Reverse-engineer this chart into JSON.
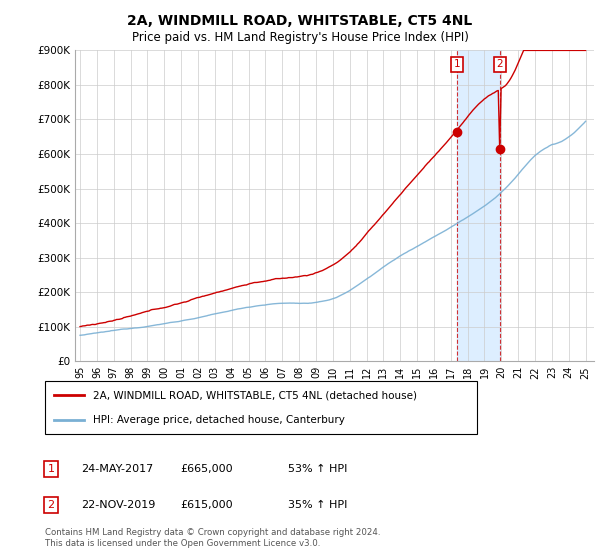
{
  "title": "2A, WINDMILL ROAD, WHITSTABLE, CT5 4NL",
  "subtitle": "Price paid vs. HM Land Registry's House Price Index (HPI)",
  "ylabel_ticks": [
    "£0",
    "£100K",
    "£200K",
    "£300K",
    "£400K",
    "£500K",
    "£600K",
    "£700K",
    "£800K",
    "£900K"
  ],
  "ytick_values": [
    0,
    100000,
    200000,
    300000,
    400000,
    500000,
    600000,
    700000,
    800000,
    900000
  ],
  "sale1": {
    "date_x": 2017.39,
    "price": 665000,
    "label": "1",
    "date_str": "24-MAY-2017",
    "pct": "53% ↑ HPI"
  },
  "sale2": {
    "date_x": 2019.9,
    "price": 615000,
    "label": "2",
    "date_str": "22-NOV-2019",
    "pct": "35% ↑ HPI"
  },
  "legend_line1": "2A, WINDMILL ROAD, WHITSTABLE, CT5 4NL (detached house)",
  "legend_line2": "HPI: Average price, detached house, Canterbury",
  "footnote": "Contains HM Land Registry data © Crown copyright and database right 2024.\nThis data is licensed under the Open Government Licence v3.0.",
  "line_color_red": "#cc0000",
  "line_color_blue": "#7ab0d4",
  "background_color": "#ffffff",
  "shading_color": "#ddeeff",
  "xtick_years": [
    1995,
    1996,
    1997,
    1998,
    1999,
    2000,
    2001,
    2002,
    2003,
    2004,
    2005,
    2006,
    2007,
    2008,
    2009,
    2010,
    2011,
    2012,
    2013,
    2014,
    2015,
    2016,
    2017,
    2018,
    2019,
    2020,
    2021,
    2022,
    2023,
    2024,
    2025
  ],
  "xtick_labels": [
    "95",
    "96",
    "97",
    "98",
    "99",
    "00",
    "01",
    "02",
    "03",
    "04",
    "05",
    "06",
    "07",
    "08",
    "09",
    "10",
    "11",
    "12",
    "13",
    "14",
    "15",
    "16",
    "17",
    "18",
    "19",
    "20",
    "21",
    "22",
    "23",
    "24",
    "25"
  ]
}
